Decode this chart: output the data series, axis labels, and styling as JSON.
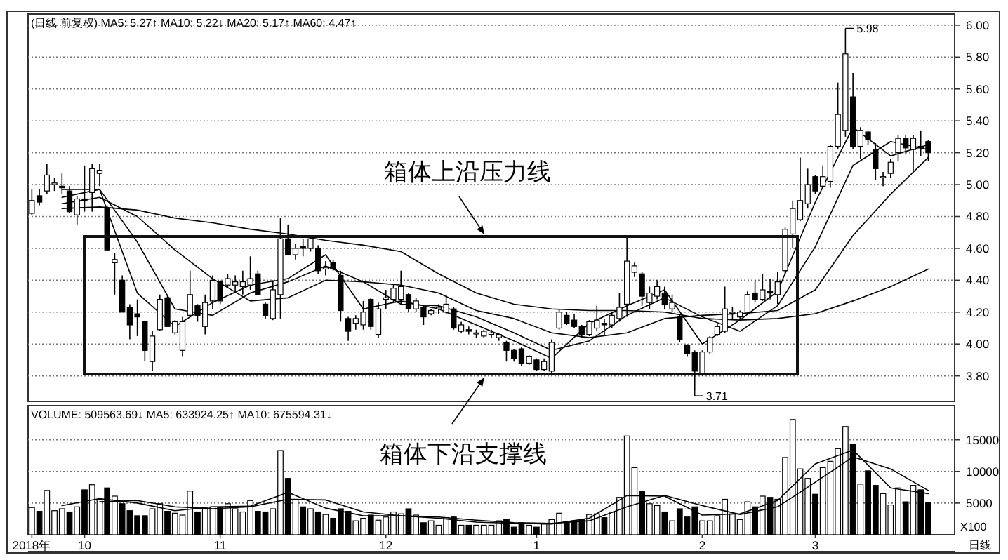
{
  "chart_data": [
    {
      "type": "candlestick",
      "title": "(日线 前复权) MA5: 5.27↑  MA10: 5.22↓  MA20: 5.17↑  MA60: 4.47↑",
      "categories": [
        null,
        null,
        null,
        null,
        null,
        null,
        null,
        null,
        null,
        null,
        null,
        null,
        null,
        null,
        null,
        null,
        null,
        null,
        null,
        null,
        null,
        null,
        null,
        null,
        null,
        null,
        null,
        null,
        null,
        null,
        null,
        null,
        null,
        null,
        null,
        null,
        null,
        null,
        null,
        null,
        null,
        null,
        null,
        null,
        null,
        null,
        null,
        null,
        null,
        null,
        null,
        null,
        null,
        null,
        null,
        null,
        null,
        null,
        null,
        null,
        null,
        null,
        null,
        null,
        null,
        null,
        null,
        null,
        null,
        null,
        null,
        null,
        null,
        null,
        null,
        null,
        null,
        null,
        null,
        null,
        null,
        null,
        null,
        null,
        null,
        null,
        null,
        null,
        null,
        null,
        null,
        null,
        null,
        null,
        null,
        null,
        null,
        null,
        null,
        null,
        null,
        null,
        null,
        null,
        null,
        null,
        null,
        null,
        null,
        null,
        null,
        null,
        null,
        null,
        null,
        null,
        null,
        null,
        null,
        null
      ],
      "ohlc": [
        [
          4.82,
          4.97,
          4.81,
          4.9
        ],
        [
          4.93,
          4.97,
          4.87,
          4.89
        ],
        [
          4.96,
          5.13,
          4.94,
          5.06
        ],
        [
          5.0,
          5.04,
          4.96,
          5.01
        ],
        [
          4.98,
          5.07,
          4.94,
          4.99
        ],
        [
          4.96,
          4.99,
          4.82,
          4.83
        ],
        [
          4.81,
          4.93,
          4.75,
          4.91
        ],
        [
          4.91,
          5.12,
          4.83,
          4.9
        ],
        [
          4.95,
          5.13,
          4.83,
          5.1
        ],
        [
          5.07,
          5.13,
          4.99,
          5.09
        ],
        [
          4.85,
          4.87,
          4.59,
          4.59
        ],
        [
          4.51,
          4.57,
          4.31,
          4.53
        ],
        [
          4.4,
          4.43,
          4.2,
          4.2
        ],
        [
          4.23,
          4.25,
          4.03,
          4.12
        ],
        [
          4.19,
          4.28,
          4.05,
          4.17
        ],
        [
          4.14,
          4.14,
          3.89,
          3.96
        ],
        [
          3.89,
          4.08,
          3.83,
          4.05
        ],
        [
          4.09,
          4.31,
          4.08,
          4.28
        ],
        [
          4.29,
          4.31,
          4.11,
          4.11
        ],
        [
          4.07,
          4.15,
          4.06,
          4.14
        ],
        [
          3.96,
          4.17,
          3.92,
          4.14
        ],
        [
          4.18,
          4.46,
          4.17,
          4.31
        ],
        [
          4.24,
          4.25,
          4.14,
          4.18
        ],
        [
          4.11,
          4.31,
          4.06,
          4.26
        ],
        [
          4.27,
          4.43,
          4.22,
          4.4
        ],
        [
          4.39,
          4.4,
          4.25,
          4.27
        ],
        [
          4.37,
          4.44,
          4.35,
          4.41
        ],
        [
          4.37,
          4.43,
          4.33,
          4.39
        ],
        [
          4.36,
          4.46,
          4.31,
          4.39
        ],
        [
          4.37,
          4.55,
          4.34,
          4.41
        ],
        [
          4.44,
          4.46,
          4.31,
          4.31
        ],
        [
          4.25,
          4.26,
          4.16,
          4.18
        ],
        [
          4.16,
          4.4,
          4.15,
          4.34
        ],
        [
          4.31,
          4.79,
          4.16,
          4.66
        ],
        [
          4.66,
          4.75,
          4.56,
          4.56
        ],
        [
          4.56,
          4.63,
          4.53,
          4.6
        ],
        [
          4.61,
          4.66,
          4.55,
          4.6
        ],
        [
          4.6,
          4.68,
          4.58,
          4.66
        ],
        [
          4.6,
          4.62,
          4.44,
          4.46
        ],
        [
          4.47,
          4.52,
          4.43,
          4.48
        ],
        [
          4.51,
          4.53,
          4.46,
          4.47
        ],
        [
          4.43,
          4.46,
          4.14,
          4.21
        ],
        [
          4.16,
          4.17,
          4.02,
          4.08
        ],
        [
          4.13,
          4.18,
          4.09,
          4.16
        ],
        [
          4.12,
          4.27,
          4.09,
          4.2
        ],
        [
          4.28,
          4.29,
          4.09,
          4.11
        ],
        [
          4.06,
          4.26,
          4.04,
          4.22
        ],
        [
          4.28,
          4.34,
          4.22,
          4.29
        ],
        [
          4.28,
          4.38,
          4.26,
          4.35
        ],
        [
          4.28,
          4.46,
          4.25,
          4.36
        ],
        [
          4.31,
          4.32,
          4.2,
          4.22
        ],
        [
          4.22,
          4.29,
          4.2,
          4.27
        ],
        [
          4.23,
          4.24,
          4.12,
          4.17
        ],
        [
          4.19,
          4.22,
          4.18,
          4.21
        ],
        [
          4.22,
          4.25,
          4.19,
          4.23
        ],
        [
          4.2,
          4.31,
          4.19,
          4.25
        ],
        [
          4.22,
          4.23,
          4.09,
          4.1
        ],
        [
          4.08,
          4.14,
          4.07,
          4.12
        ],
        [
          4.09,
          4.11,
          4.06,
          4.08
        ],
        [
          4.07,
          4.09,
          4.04,
          4.07
        ],
        [
          4.05,
          4.09,
          4.04,
          4.08
        ],
        [
          4.06,
          4.09,
          4.04,
          4.07
        ],
        [
          4.04,
          4.07,
          4.02,
          4.06
        ],
        [
          4.01,
          4.02,
          3.89,
          3.96
        ],
        [
          3.96,
          3.97,
          3.89,
          3.91
        ],
        [
          3.97,
          3.98,
          3.86,
          3.88
        ],
        [
          3.88,
          3.93,
          3.87,
          3.92
        ],
        [
          3.9,
          3.91,
          3.83,
          3.84
        ],
        [
          3.84,
          3.91,
          3.83,
          3.89
        ],
        [
          3.83,
          4.03,
          3.82,
          4.01
        ],
        [
          4.1,
          4.22,
          4.09,
          4.2
        ],
        [
          4.18,
          4.2,
          4.12,
          4.13
        ],
        [
          4.15,
          4.19,
          4.1,
          4.11
        ],
        [
          4.11,
          4.12,
          4.04,
          4.06
        ],
        [
          4.06,
          4.15,
          4.05,
          4.14
        ],
        [
          4.1,
          4.24,
          4.08,
          4.15
        ],
        [
          4.13,
          4.16,
          4.05,
          4.12
        ],
        [
          4.12,
          4.2,
          4.1,
          4.18
        ],
        [
          4.16,
          4.32,
          4.14,
          4.23
        ],
        [
          4.25,
          4.67,
          4.17,
          4.52
        ],
        [
          4.45,
          4.51,
          4.42,
          4.49
        ],
        [
          4.44,
          4.45,
          4.24,
          4.3
        ],
        [
          4.26,
          4.36,
          4.22,
          4.32
        ],
        [
          4.3,
          4.4,
          4.28,
          4.36
        ],
        [
          4.32,
          4.36,
          4.22,
          4.25
        ],
        [
          4.22,
          4.31,
          4.2,
          4.26
        ],
        [
          4.17,
          4.19,
          4.01,
          4.03
        ],
        [
          3.99,
          4.0,
          3.92,
          3.94
        ],
        [
          3.95,
          3.96,
          3.71,
          3.83
        ],
        [
          3.81,
          3.96,
          3.8,
          3.95
        ],
        [
          3.95,
          4.05,
          3.94,
          4.04
        ],
        [
          4.06,
          4.13,
          4.05,
          4.11
        ],
        [
          4.08,
          4.36,
          4.07,
          4.22
        ],
        [
          4.2,
          4.23,
          4.15,
          4.2
        ],
        [
          4.17,
          4.21,
          4.16,
          4.2
        ],
        [
          4.2,
          4.33,
          4.19,
          4.31
        ],
        [
          4.32,
          4.4,
          4.26,
          4.28
        ],
        [
          4.28,
          4.44,
          4.27,
          4.34
        ],
        [
          4.33,
          4.41,
          4.28,
          4.32
        ],
        [
          4.31,
          4.45,
          4.25,
          4.39
        ],
        [
          4.46,
          4.73,
          4.44,
          4.72
        ],
        [
          4.69,
          4.9,
          4.6,
          4.85
        ],
        [
          4.78,
          5.17,
          4.77,
          4.9
        ],
        [
          4.88,
          5.1,
          4.85,
          5.0
        ],
        [
          5.05,
          5.06,
          4.94,
          4.96
        ],
        [
          4.99,
          5.12,
          4.98,
          5.05
        ],
        [
          5.02,
          5.25,
          4.98,
          5.24
        ],
        [
          5.24,
          5.64,
          5.22,
          5.44
        ],
        [
          5.34,
          5.98,
          5.3,
          5.82
        ],
        [
          5.55,
          5.7,
          5.22,
          5.24
        ],
        [
          5.24,
          5.36,
          5.16,
          5.34
        ],
        [
          5.33,
          5.34,
          5.25,
          5.28
        ],
        [
          5.22,
          5.26,
          5.03,
          5.1
        ],
        [
          5.05,
          5.08,
          4.99,
          5.05
        ],
        [
          5.07,
          5.16,
          5.04,
          5.14
        ],
        [
          5.2,
          5.31,
          5.15,
          5.29
        ],
        [
          5.29,
          5.31,
          5.19,
          5.23
        ],
        [
          5.22,
          5.31,
          5.08,
          5.29
        ],
        [
          5.24,
          5.34,
          5.18,
          5.23
        ],
        [
          5.27,
          5.28,
          5.15,
          5.2
        ]
      ],
      "colors": [
        "#ffffff",
        "#000000",
        "#ffffff",
        "#ffffff",
        "#ffffff",
        "#000000",
        "#ffffff",
        "#000000",
        "#ffffff",
        "#ffffff",
        "#000000",
        "#ffffff",
        "#000000",
        "#000000",
        "#000000",
        "#000000",
        "#ffffff",
        "#ffffff",
        "#000000",
        "#ffffff",
        "#ffffff",
        "#ffffff",
        "#000000",
        "#ffffff",
        "#ffffff",
        "#000000",
        "#ffffff",
        "#ffffff",
        "#ffffff",
        "#ffffff",
        "#000000",
        "#000000",
        "#ffffff",
        "#ffffff",
        "#000000",
        "#ffffff",
        "#000000",
        "#ffffff",
        "#000000",
        "#ffffff",
        "#000000",
        "#000000",
        "#000000",
        "#ffffff",
        "#ffffff",
        "#000000",
        "#ffffff",
        "#ffffff",
        "#ffffff",
        "#ffffff",
        "#000000",
        "#ffffff",
        "#000000",
        "#ffffff",
        "#ffffff",
        "#ffffff",
        "#000000",
        "#ffffff",
        "#000000",
        "#ffffff",
        "#ffffff",
        "#ffffff",
        "#ffffff",
        "#000000",
        "#000000",
        "#000000",
        "#ffffff",
        "#000000",
        "#ffffff",
        "#ffffff",
        "#ffffff",
        "#000000",
        "#000000",
        "#000000",
        "#ffffff",
        "#ffffff",
        "#000000",
        "#ffffff",
        "#ffffff",
        "#ffffff",
        "#ffffff",
        "#000000",
        "#ffffff",
        "#ffffff",
        "#000000",
        "#ffffff",
        "#000000",
        "#000000",
        "#000000",
        "#ffffff",
        "#ffffff",
        "#ffffff",
        "#ffffff",
        "#ffffff",
        "#ffffff",
        "#ffffff",
        "#000000",
        "#ffffff",
        "#000000",
        "#ffffff",
        "#ffffff",
        "#ffffff",
        "#ffffff",
        "#ffffff",
        "#000000",
        "#ffffff",
        "#ffffff",
        "#ffffff",
        "#ffffff",
        "#000000",
        "#ffffff",
        "#000000",
        "#000000",
        "#ffffff",
        "#ffffff",
        "#ffffff",
        "#000000",
        "#ffffff",
        "#000000",
        "#000000"
      ],
      "series": [
        {
          "type": "line",
          "color": "#000000",
          "values": [
            null,
            null,
            null,
            null,
            4.97,
            null,
            null,
            null,
            null,
            4.97,
            null,
            null,
            null,
            null,
            4.32,
            null,
            null,
            null,
            null,
            4.11,
            null,
            null,
            null,
            null,
            4.26,
            null,
            null,
            null,
            null,
            4.37,
            null,
            null,
            null,
            null,
            4.41,
            null,
            null,
            null,
            null,
            4.56,
            null,
            null,
            null,
            null,
            4.22,
            null,
            null,
            null,
            null,
            4.27,
            null,
            null,
            null,
            null,
            4.22,
            null,
            null,
            null,
            null,
            4.12,
            null,
            null,
            null,
            null,
            4.02,
            null,
            null,
            null,
            null,
            3.91,
            null,
            null,
            null,
            null,
            4.13,
            null,
            null,
            null,
            null,
            4.24,
            null,
            null,
            null,
            null,
            4.34,
            null,
            null,
            null,
            null,
            4.0,
            null,
            null,
            null,
            null,
            4.15,
            null,
            null,
            null,
            null,
            4.33,
            null,
            null,
            null,
            null,
            4.89,
            null,
            null,
            null,
            null,
            5.36,
            null,
            null,
            null,
            null,
            5.18,
            null,
            null,
            null,
            null,
            5.25
          ]
        },
        {
          "type": "line",
          "color": "#000000",
          "values": [
            null,
            null,
            null,
            null,
            4.92,
            null,
            null,
            null,
            null,
            4.97,
            null,
            null,
            null,
            null,
            4.64,
            null,
            null,
            null,
            null,
            4.22,
            null,
            null,
            null,
            null,
            4.18,
            null,
            null,
            null,
            null,
            4.32,
            null,
            null,
            null,
            null,
            4.39,
            null,
            null,
            null,
            null,
            4.49,
            null,
            null,
            null,
            null,
            4.39,
            null,
            null,
            null,
            null,
            4.25,
            null,
            null,
            null,
            null,
            4.24,
            null,
            null,
            null,
            null,
            4.17,
            null,
            null,
            null,
            null,
            4.07,
            null,
            null,
            null,
            null,
            3.96,
            null,
            null,
            null,
            null,
            4.02,
            null,
            null,
            null,
            null,
            4.18,
            null,
            null,
            null,
            null,
            4.29,
            null,
            null,
            null,
            null,
            4.17,
            null,
            null,
            null,
            null,
            4.08,
            null,
            null,
            null,
            null,
            4.24,
            null,
            null,
            null,
            null,
            4.61,
            null,
            null,
            null,
            null,
            5.12,
            null,
            null,
            null,
            null,
            5.27,
            null,
            null,
            null,
            null,
            5.22
          ]
        },
        {
          "type": "line",
          "color": "#000000",
          "values": [
            null,
            null,
            null,
            null,
            4.88,
            null,
            null,
            null,
            null,
            4.92,
            null,
            null,
            null,
            null,
            4.8,
            null,
            null,
            null,
            null,
            4.59,
            null,
            null,
            null,
            null,
            4.41,
            null,
            null,
            null,
            null,
            4.27,
            null,
            null,
            null,
            null,
            4.29,
            null,
            null,
            null,
            null,
            4.4,
            null,
            null,
            null,
            null,
            4.39,
            null,
            null,
            null,
            null,
            4.37,
            null,
            null,
            null,
            null,
            4.32,
            null,
            null,
            null,
            null,
            4.21,
            null,
            null,
            null,
            null,
            4.16,
            null,
            null,
            null,
            null,
            4.07,
            null,
            null,
            null,
            null,
            4.04,
            null,
            null,
            null,
            null,
            4.07,
            null,
            null,
            null,
            null,
            4.16,
            null,
            null,
            null,
            null,
            4.18,
            null,
            null,
            null,
            null,
            4.19,
            null,
            null,
            null,
            null,
            4.21,
            null,
            null,
            null,
            null,
            4.34,
            null,
            null,
            null,
            null,
            4.68,
            null,
            null,
            null,
            null,
            4.94,
            null,
            null,
            null,
            null,
            5.17
          ]
        },
        {
          "type": "line",
          "color": "#000000",
          "values": [
            null,
            null,
            null,
            null,
            4.85,
            null,
            null,
            null,
            null,
            4.86,
            null,
            null,
            null,
            null,
            4.84,
            null,
            null,
            null,
            null,
            4.79,
            null,
            null,
            null,
            null,
            4.76,
            null,
            null,
            null,
            null,
            4.72,
            null,
            null,
            null,
            null,
            4.69,
            null,
            null,
            null,
            null,
            4.65,
            null,
            null,
            null,
            null,
            4.62,
            null,
            null,
            null,
            null,
            4.58,
            null,
            null,
            null,
            null,
            4.44,
            null,
            null,
            null,
            null,
            4.32,
            null,
            null,
            null,
            null,
            4.25,
            null,
            null,
            null,
            null,
            4.22,
            null,
            null,
            null,
            null,
            4.21,
            null,
            null,
            null,
            null,
            4.21,
            null,
            null,
            null,
            null,
            4.2,
            null,
            null,
            null,
            null,
            4.16,
            null,
            null,
            null,
            null,
            4.15,
            null,
            null,
            null,
            null,
            4.16,
            null,
            null,
            null,
            null,
            4.19,
            null,
            null,
            null,
            null,
            4.27,
            null,
            null,
            null,
            null,
            4.36,
            null,
            null,
            null,
            null,
            4.47
          ]
        }
      ],
      "ylim": [
        3.64,
        6.07
      ],
      "yticks": [
        {
          "value": 3.8,
          "label": "3.80"
        },
        {
          "value": 4.0,
          "label": "4.00"
        },
        {
          "value": 4.2,
          "label": "4.20"
        },
        {
          "value": 4.4,
          "label": "4.40"
        },
        {
          "value": 4.6,
          "label": "4.60"
        },
        {
          "value": 4.8,
          "label": "4.80"
        },
        {
          "value": 5.0,
          "label": "5.00"
        },
        {
          "value": 5.2,
          "label": "5.20"
        },
        {
          "value": 5.4,
          "label": "5.40"
        },
        {
          "value": 5.6,
          "label": "5.60"
        },
        {
          "value": 5.8,
          "label": "5.80"
        },
        {
          "value": 6.0,
          "label": "6.00"
        }
      ],
      "tick_labels": "y",
      "grid": "y",
      "annotations": [
        "5.98",
        "3.71",
        "箱体上沿压力线",
        "箱体下沿支撑线"
      ]
    },
    {
      "type": "bar",
      "title": "VOLUME: 509563.69↓  MA5: 633924.25↑  MA10: 675594.31↓",
      "categories": [
        "2018年",
        null,
        null,
        null,
        null,
        null,
        null,
        "10",
        null,
        null,
        null,
        null,
        null,
        null,
        null,
        null,
        null,
        null,
        null,
        null,
        null,
        null,
        null,
        null,
        null,
        "11",
        null,
        null,
        null,
        null,
        null,
        null,
        null,
        null,
        null,
        null,
        null,
        null,
        null,
        null,
        null,
        null,
        null,
        null,
        null,
        null,
        null,
        "12",
        null,
        null,
        null,
        null,
        null,
        null,
        null,
        null,
        null,
        null,
        null,
        null,
        null,
        null,
        null,
        null,
        null,
        null,
        null,
        "1",
        null,
        null,
        null,
        null,
        null,
        null,
        null,
        null,
        null,
        null,
        null,
        null,
        null,
        null,
        null,
        null,
        null,
        null,
        null,
        null,
        null,
        "2",
        null,
        null,
        null,
        null,
        null,
        null,
        null,
        null,
        null,
        null,
        null,
        null,
        null,
        null,
        "3",
        null,
        null,
        null,
        null,
        null,
        null,
        null,
        null,
        null,
        null,
        null,
        null,
        null,
        null,
        null
      ],
      "values": [
        4300,
        3700,
        7000,
        3800,
        4100,
        3600,
        4400,
        7100,
        7900,
        5600,
        7400,
        6100,
        4900,
        3800,
        3000,
        3000,
        4100,
        4900,
        3700,
        3400,
        3100,
        6900,
        3600,
        4100,
        4400,
        4300,
        4900,
        4100,
        3600,
        5400,
        3700,
        3600,
        4100,
        13300,
        8900,
        5600,
        4400,
        4100,
        3600,
        3200,
        2600,
        4100,
        3700,
        2200,
        2600,
        3100,
        2300,
        2800,
        3600,
        3300,
        4100,
        3100,
        1900,
        2200,
        1500,
        2700,
        2800,
        1500,
        1500,
        1500,
        1500,
        1500,
        2200,
        2400,
        1200,
        1900,
        1500,
        1200,
        1700,
        2400,
        3400,
        1900,
        2200,
        2400,
        3200,
        3300,
        2700,
        3600,
        5900,
        15600,
        10600,
        6800,
        4900,
        4600,
        3600,
        2200,
        4100,
        2800,
        4400,
        2200,
        2200,
        3000,
        5600,
        3300,
        2400,
        5200,
        4400,
        6100,
        5900,
        5600,
        12200,
        18200,
        10400,
        8900,
        6400,
        10600,
        11600,
        13600,
        17100,
        14300,
        8000,
        10100,
        7800,
        6500,
        4700,
        7400,
        5200,
        7800,
        7100,
        5100
      ],
      "colors": [
        "#ffffff",
        "#000000",
        "#ffffff",
        "#ffffff",
        "#ffffff",
        "#000000",
        "#ffffff",
        "#000000",
        "#ffffff",
        "#ffffff",
        "#000000",
        "#ffffff",
        "#000000",
        "#000000",
        "#000000",
        "#000000",
        "#ffffff",
        "#ffffff",
        "#000000",
        "#ffffff",
        "#ffffff",
        "#ffffff",
        "#000000",
        "#ffffff",
        "#ffffff",
        "#000000",
        "#ffffff",
        "#ffffff",
        "#ffffff",
        "#ffffff",
        "#000000",
        "#000000",
        "#ffffff",
        "#ffffff",
        "#000000",
        "#ffffff",
        "#000000",
        "#ffffff",
        "#000000",
        "#ffffff",
        "#000000",
        "#000000",
        "#000000",
        "#ffffff",
        "#ffffff",
        "#000000",
        "#ffffff",
        "#ffffff",
        "#ffffff",
        "#ffffff",
        "#000000",
        "#ffffff",
        "#000000",
        "#ffffff",
        "#ffffff",
        "#ffffff",
        "#000000",
        "#ffffff",
        "#000000",
        "#ffffff",
        "#ffffff",
        "#ffffff",
        "#ffffff",
        "#000000",
        "#000000",
        "#000000",
        "#ffffff",
        "#000000",
        "#ffffff",
        "#ffffff",
        "#ffffff",
        "#000000",
        "#000000",
        "#000000",
        "#ffffff",
        "#ffffff",
        "#000000",
        "#ffffff",
        "#ffffff",
        "#ffffff",
        "#ffffff",
        "#000000",
        "#ffffff",
        "#ffffff",
        "#000000",
        "#ffffff",
        "#000000",
        "#000000",
        "#000000",
        "#ffffff",
        "#ffffff",
        "#ffffff",
        "#ffffff",
        "#ffffff",
        "#ffffff",
        "#ffffff",
        "#000000",
        "#ffffff",
        "#000000",
        "#ffffff",
        "#ffffff",
        "#ffffff",
        "#ffffff",
        "#ffffff",
        "#000000",
        "#ffffff",
        "#ffffff",
        "#ffffff",
        "#ffffff",
        "#000000",
        "#ffffff",
        "#000000",
        "#000000",
        "#ffffff",
        "#ffffff",
        "#ffffff",
        "#000000",
        "#ffffff",
        "#000000",
        "#000000"
      ],
      "series": [
        {
          "type": "line",
          "color": "#000000",
          "values": [
            null,
            null,
            null,
            null,
            4600,
            null,
            null,
            null,
            null,
            5700,
            null,
            null,
            null,
            null,
            5000,
            null,
            null,
            null,
            null,
            3800,
            null,
            null,
            null,
            null,
            4400,
            null,
            null,
            null,
            null,
            4500,
            null,
            null,
            null,
            null,
            6700,
            null,
            null,
            null,
            null,
            4200,
            null,
            null,
            null,
            null,
            3000,
            null,
            null,
            null,
            null,
            3000,
            null,
            null,
            null,
            null,
            2600,
            null,
            null,
            null,
            null,
            2000,
            null,
            null,
            null,
            null,
            1800,
            null,
            null,
            null,
            null,
            1700,
            null,
            null,
            null,
            null,
            2600,
            null,
            null,
            null,
            null,
            6200,
            null,
            null,
            null,
            null,
            6100,
            null,
            null,
            null,
            null,
            3100,
            null,
            null,
            null,
            null,
            3300,
            null,
            null,
            null,
            null,
            5400,
            null,
            null,
            null,
            null,
            11200,
            null,
            null,
            null,
            null,
            13400,
            null,
            null,
            null,
            null,
            7400,
            null,
            null,
            null,
            null,
            6500
          ]
        },
        {
          "type": "line",
          "color": "#000000",
          "values": [
            null,
            null,
            null,
            null,
            null,
            null,
            null,
            null,
            null,
            5200,
            null,
            null,
            null,
            null,
            5400,
            null,
            null,
            null,
            null,
            4400,
            null,
            null,
            null,
            null,
            4100,
            null,
            null,
            null,
            null,
            4400,
            null,
            null,
            null,
            null,
            5600,
            null,
            null,
            null,
            null,
            5500,
            null,
            null,
            null,
            null,
            3600,
            null,
            null,
            null,
            null,
            3000,
            null,
            null,
            null,
            null,
            2800,
            null,
            null,
            null,
            null,
            2300,
            null,
            null,
            null,
            null,
            1900,
            null,
            null,
            null,
            null,
            1800,
            null,
            null,
            null,
            null,
            2200,
            null,
            null,
            null,
            null,
            4400,
            null,
            null,
            null,
            null,
            6200,
            null,
            null,
            null,
            null,
            4600,
            null,
            null,
            null,
            null,
            3200,
            null,
            null,
            null,
            null,
            4400,
            null,
            null,
            null,
            null,
            8300,
            null,
            null,
            null,
            null,
            12300,
            null,
            null,
            null,
            null,
            10400,
            null,
            null,
            null,
            null,
            7000
          ]
        }
      ],
      "ylim": [
        0,
        20400
      ],
      "yticks": [
        5000,
        10000,
        15000
      ],
      "grid": "y",
      "annotations": [
        "X100",
        "日线"
      ]
    }
  ]
}
